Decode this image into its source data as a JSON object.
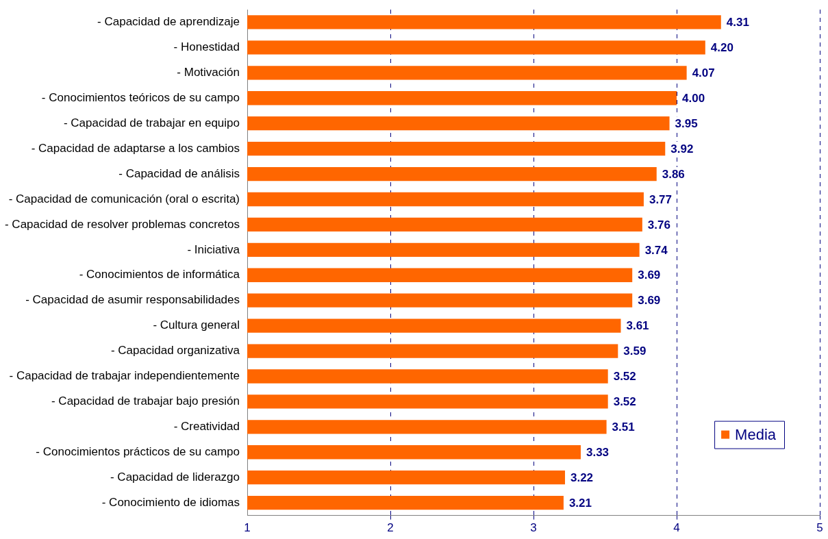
{
  "chart_data": {
    "type": "bar",
    "orientation": "horizontal",
    "categories": [
      "- Capacidad de aprendizaje",
      "- Honestidad",
      "- Motivación",
      "- Conocimientos teóricos de su campo",
      "- Capacidad de trabajar en equipo",
      "- Capacidad de adaptarse a los cambios",
      "- Capacidad de análisis",
      "- Capacidad de comunicación (oral o escrita)",
      "- Capacidad de resolver problemas concretos",
      "- Iniciativa",
      "- Conocimientos de informática",
      "- Capacidad de asumir responsabilidades",
      "- Cultura general",
      "- Capacidad organizativa",
      "- Capacidad de trabajar independientemente",
      "- Capacidad de trabajar bajo presión",
      "- Creatividad",
      "- Conocimientos prácticos de su campo",
      "- Capacidad de liderazgo",
      "- Conocimiento de idiomas"
    ],
    "series": [
      {
        "name": "Media",
        "color": "#ff6600",
        "values": [
          4.31,
          4.2,
          4.07,
          4.0,
          3.95,
          3.92,
          3.86,
          3.77,
          3.76,
          3.74,
          3.69,
          3.69,
          3.61,
          3.59,
          3.52,
          3.52,
          3.51,
          3.33,
          3.22,
          3.21
        ],
        "value_labels": [
          "4.31",
          "4.20",
          "4.07",
          "4.00",
          "3.95",
          "3.92",
          "3.86",
          "3.77",
          "3.76",
          "3.74",
          "3.69",
          "3.69",
          "3.61",
          "3.59",
          "3.52",
          "3.52",
          "3.51",
          "3.33",
          "3.22",
          "3.21"
        ]
      }
    ],
    "xlim": [
      1,
      5
    ],
    "xticks": [
      1,
      2,
      3,
      4,
      5
    ],
    "grid": "x",
    "legend": "bottom right"
  }
}
